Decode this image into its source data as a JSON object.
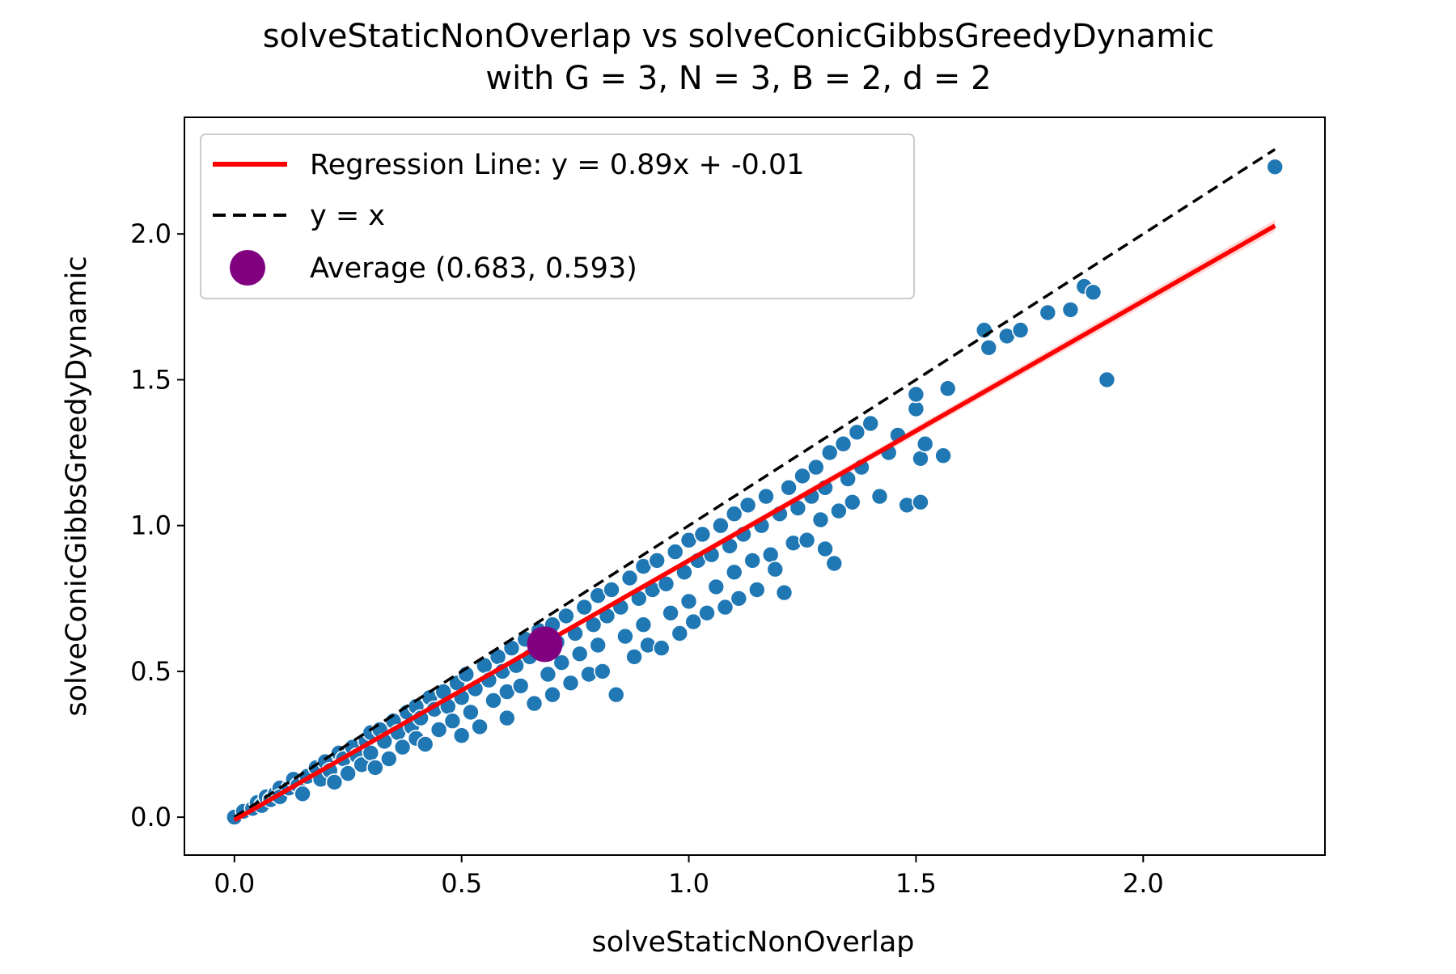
{
  "chart_data": {
    "type": "scatter",
    "title": "solveStaticNonOverlap vs solveConicGibbsGreedyDynamic",
    "subtitle": "with G = 3, N = 3, B = 2, d = 2",
    "xlabel": "solveStaticNonOverlap",
    "ylabel": "solveConicGibbsGreedyDynamic",
    "xlim": [
      -0.11,
      2.4
    ],
    "ylim": [
      -0.13,
      2.4
    ],
    "xticks": [
      0.0,
      0.5,
      1.0,
      1.5,
      2.0
    ],
    "yticks": [
      0.0,
      0.5,
      1.0,
      1.5,
      2.0
    ],
    "xtick_labels": [
      "0.0",
      "0.5",
      "1.0",
      "1.5",
      "2.0"
    ],
    "ytick_labels": [
      "0.0",
      "0.5",
      "1.0",
      "1.5",
      "2.0"
    ],
    "grid": false,
    "legend_position": "top-left",
    "colors": {
      "points": "#1f77b4",
      "regression": "#ff0000",
      "identity": "#000000",
      "average": "#800080"
    },
    "regression": {
      "label": "Regression Line: y = 0.89x + -0.01",
      "slope": 0.89,
      "intercept": -0.01,
      "x_range": [
        0.0,
        2.29
      ]
    },
    "identity": {
      "label": "y = x",
      "x_range": [
        0.0,
        2.29
      ]
    },
    "average": {
      "label": "Average (0.683, 0.593)",
      "x": 0.683,
      "y": 0.593
    },
    "series": [
      {
        "points": [
          [
            0.0,
            0.0
          ],
          [
            0.02,
            0.02
          ],
          [
            0.04,
            0.03
          ],
          [
            0.05,
            0.05
          ],
          [
            0.06,
            0.04
          ],
          [
            0.07,
            0.07
          ],
          [
            0.08,
            0.06
          ],
          [
            0.09,
            0.08
          ],
          [
            0.1,
            0.1
          ],
          [
            0.1,
            0.07
          ],
          [
            0.12,
            0.1
          ],
          [
            0.13,
            0.13
          ],
          [
            0.14,
            0.11
          ],
          [
            0.15,
            0.08
          ],
          [
            0.16,
            0.14
          ],
          [
            0.18,
            0.17
          ],
          [
            0.19,
            0.13
          ],
          [
            0.2,
            0.19
          ],
          [
            0.21,
            0.16
          ],
          [
            0.22,
            0.12
          ],
          [
            0.23,
            0.22
          ],
          [
            0.24,
            0.2
          ],
          [
            0.25,
            0.15
          ],
          [
            0.26,
            0.24
          ],
          [
            0.27,
            0.21
          ],
          [
            0.28,
            0.18
          ],
          [
            0.29,
            0.26
          ],
          [
            0.3,
            0.29
          ],
          [
            0.3,
            0.22
          ],
          [
            0.31,
            0.17
          ],
          [
            0.32,
            0.3
          ],
          [
            0.33,
            0.26
          ],
          [
            0.34,
            0.2
          ],
          [
            0.35,
            0.33
          ],
          [
            0.36,
            0.29
          ],
          [
            0.37,
            0.24
          ],
          [
            0.38,
            0.36
          ],
          [
            0.39,
            0.31
          ],
          [
            0.4,
            0.38
          ],
          [
            0.4,
            0.27
          ],
          [
            0.41,
            0.34
          ],
          [
            0.42,
            0.25
          ],
          [
            0.43,
            0.41
          ],
          [
            0.44,
            0.37
          ],
          [
            0.45,
            0.3
          ],
          [
            0.46,
            0.43
          ],
          [
            0.47,
            0.38
          ],
          [
            0.48,
            0.33
          ],
          [
            0.49,
            0.46
          ],
          [
            0.5,
            0.41
          ],
          [
            0.5,
            0.28
          ],
          [
            0.51,
            0.49
          ],
          [
            0.52,
            0.36
          ],
          [
            0.53,
            0.44
          ],
          [
            0.54,
            0.31
          ],
          [
            0.55,
            0.52
          ],
          [
            0.56,
            0.47
          ],
          [
            0.57,
            0.4
          ],
          [
            0.58,
            0.55
          ],
          [
            0.59,
            0.5
          ],
          [
            0.6,
            0.43
          ],
          [
            0.6,
            0.34
          ],
          [
            0.61,
            0.58
          ],
          [
            0.62,
            0.52
          ],
          [
            0.63,
            0.45
          ],
          [
            0.64,
            0.61
          ],
          [
            0.65,
            0.55
          ],
          [
            0.66,
            0.39
          ],
          [
            0.67,
            0.64
          ],
          [
            0.68,
            0.57
          ],
          [
            0.69,
            0.49
          ],
          [
            0.7,
            0.66
          ],
          [
            0.7,
            0.42
          ],
          [
            0.71,
            0.6
          ],
          [
            0.72,
            0.53
          ],
          [
            0.73,
            0.69
          ],
          [
            0.74,
            0.46
          ],
          [
            0.75,
            0.63
          ],
          [
            0.76,
            0.56
          ],
          [
            0.77,
            0.72
          ],
          [
            0.78,
            0.49
          ],
          [
            0.79,
            0.66
          ],
          [
            0.8,
            0.76
          ],
          [
            0.8,
            0.59
          ],
          [
            0.81,
            0.5
          ],
          [
            0.82,
            0.69
          ],
          [
            0.83,
            0.78
          ],
          [
            0.84,
            0.42
          ],
          [
            0.85,
            0.72
          ],
          [
            0.86,
            0.62
          ],
          [
            0.87,
            0.82
          ],
          [
            0.88,
            0.55
          ],
          [
            0.89,
            0.75
          ],
          [
            0.9,
            0.86
          ],
          [
            0.9,
            0.66
          ],
          [
            0.91,
            0.59
          ],
          [
            0.92,
            0.78
          ],
          [
            0.93,
            0.88
          ],
          [
            0.94,
            0.58
          ],
          [
            0.95,
            0.8
          ],
          [
            0.96,
            0.7
          ],
          [
            0.97,
            0.91
          ],
          [
            0.98,
            0.63
          ],
          [
            0.99,
            0.84
          ],
          [
            1.0,
            0.95
          ],
          [
            1.0,
            0.74
          ],
          [
            1.01,
            0.67
          ],
          [
            1.02,
            0.88
          ],
          [
            1.03,
            0.97
          ],
          [
            1.04,
            0.7
          ],
          [
            1.05,
            0.9
          ],
          [
            1.06,
            0.79
          ],
          [
            1.07,
            1.0
          ],
          [
            1.08,
            0.72
          ],
          [
            1.09,
            0.93
          ],
          [
            1.1,
            1.04
          ],
          [
            1.1,
            0.84
          ],
          [
            1.11,
            0.75
          ],
          [
            1.12,
            0.97
          ],
          [
            1.13,
            1.07
          ],
          [
            1.14,
            0.88
          ],
          [
            1.15,
            0.78
          ],
          [
            1.16,
            1.0
          ],
          [
            1.17,
            1.1
          ],
          [
            1.18,
            0.9
          ],
          [
            1.19,
            0.85
          ],
          [
            1.2,
            1.04
          ],
          [
            1.21,
            0.77
          ],
          [
            1.22,
            1.13
          ],
          [
            1.23,
            0.94
          ],
          [
            1.24,
            1.06
          ],
          [
            1.25,
            1.17
          ],
          [
            1.26,
            0.95
          ],
          [
            1.27,
            1.1
          ],
          [
            1.28,
            1.2
          ],
          [
            1.29,
            1.02
          ],
          [
            1.3,
            0.92
          ],
          [
            1.3,
            1.13
          ],
          [
            1.31,
            1.25
          ],
          [
            1.32,
            0.87
          ],
          [
            1.33,
            1.05
          ],
          [
            1.34,
            1.28
          ],
          [
            1.35,
            1.16
          ],
          [
            1.36,
            1.08
          ],
          [
            1.37,
            1.32
          ],
          [
            1.38,
            1.2
          ],
          [
            1.4,
            1.35
          ],
          [
            1.42,
            1.1
          ],
          [
            1.44,
            1.25
          ],
          [
            1.46,
            1.31
          ],
          [
            1.48,
            1.07
          ],
          [
            1.5,
            1.4
          ],
          [
            1.5,
            1.45
          ],
          [
            1.51,
            1.23
          ],
          [
            1.51,
            1.08
          ],
          [
            1.52,
            1.28
          ],
          [
            1.56,
            1.24
          ],
          [
            1.57,
            1.47
          ],
          [
            1.65,
            1.67
          ],
          [
            1.66,
            1.61
          ],
          [
            1.7,
            1.65
          ],
          [
            1.73,
            1.67
          ],
          [
            1.79,
            1.73
          ],
          [
            1.84,
            1.74
          ],
          [
            1.87,
            1.82
          ],
          [
            1.89,
            1.8
          ],
          [
            1.92,
            1.5
          ],
          [
            2.29,
            2.23
          ]
        ]
      }
    ]
  }
}
